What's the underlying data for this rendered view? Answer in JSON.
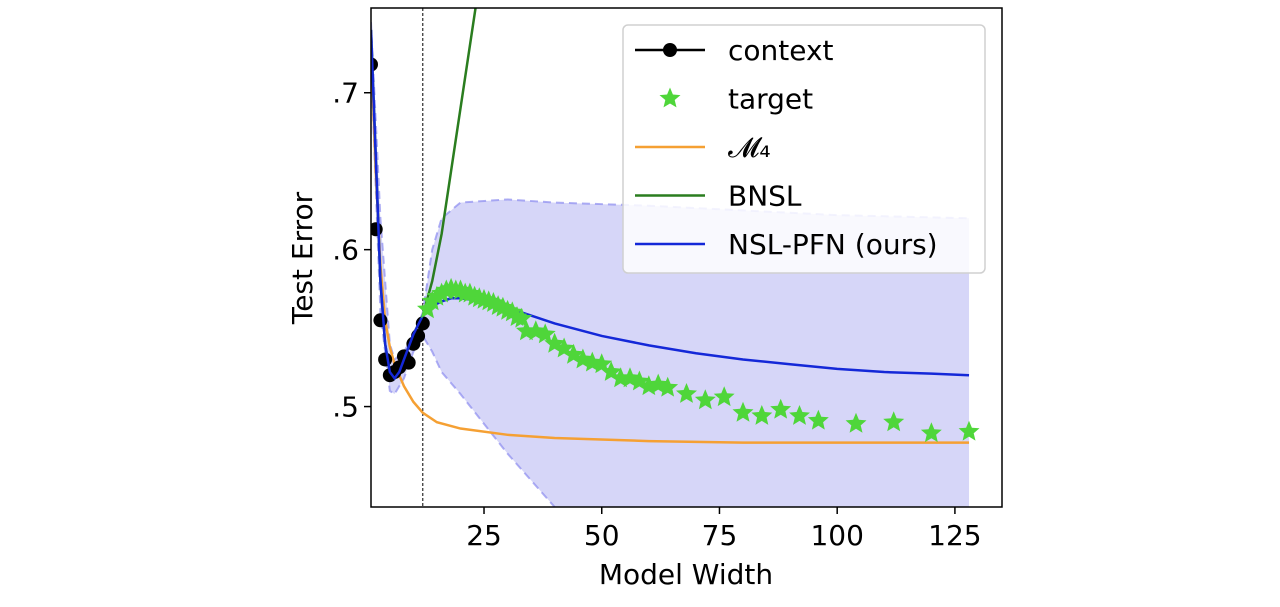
{
  "chart_data": {
    "type": "line",
    "xlabel": "Model Width",
    "ylabel": "Test Error",
    "xlim": [
      1,
      135
    ],
    "ylim": [
      0.436,
      0.754
    ],
    "xticks": [
      25,
      50,
      75,
      100,
      125
    ],
    "yticks": [
      {
        "value": 0.5,
        "label": ".5"
      },
      {
        "value": 0.6,
        "label": ".6"
      },
      {
        "value": 0.7,
        "label": ".7"
      }
    ],
    "vline": 12,
    "legend": "upper right",
    "series": [
      {
        "name": "context",
        "color": "#000000",
        "marker": "circle",
        "line": true,
        "x": [
          1,
          2,
          3,
          4,
          5,
          6,
          7,
          8,
          9,
          10,
          11,
          12
        ],
        "values": [
          0.718,
          0.613,
          0.555,
          0.53,
          0.52,
          0.522,
          0.525,
          0.532,
          0.528,
          0.54,
          0.545,
          0.553
        ]
      },
      {
        "name": "target",
        "color": "#4fd63a",
        "marker": "star",
        "line": false,
        "x": [
          13,
          14,
          15,
          16,
          17,
          18,
          19,
          20,
          21,
          22,
          23,
          24,
          25,
          26,
          27,
          28,
          29,
          30,
          31,
          32,
          33,
          34,
          36,
          38,
          40,
          42,
          44,
          46,
          48,
          50,
          52,
          54,
          56,
          58,
          60,
          62,
          64,
          68,
          72,
          76,
          80,
          84,
          88,
          92,
          96,
          104,
          112,
          120,
          128
        ],
        "values": [
          0.562,
          0.567,
          0.57,
          0.572,
          0.574,
          0.575,
          0.574,
          0.574,
          0.572,
          0.572,
          0.57,
          0.569,
          0.568,
          0.567,
          0.566,
          0.564,
          0.563,
          0.561,
          0.56,
          0.557,
          0.556,
          0.548,
          0.548,
          0.546,
          0.54,
          0.537,
          0.533,
          0.53,
          0.528,
          0.527,
          0.522,
          0.518,
          0.518,
          0.516,
          0.513,
          0.514,
          0.512,
          0.508,
          0.504,
          0.506,
          0.496,
          0.494,
          0.498,
          0.494,
          0.491,
          0.489,
          0.49,
          0.483,
          0.484
        ]
      },
      {
        "name": "𝓜₄",
        "color": "#f5a033",
        "marker": "none",
        "line": true,
        "x": [
          1,
          2,
          3,
          4,
          5,
          6,
          8,
          10,
          12,
          15,
          20,
          30,
          40,
          60,
          80,
          100,
          128
        ],
        "values": [
          0.73,
          0.65,
          0.59,
          0.555,
          0.538,
          0.527,
          0.513,
          0.503,
          0.496,
          0.49,
          0.486,
          0.482,
          0.48,
          0.478,
          0.477,
          0.477,
          0.477
        ]
      },
      {
        "name": "BNSL",
        "color": "#2a7d1f",
        "marker": "none",
        "line": true,
        "x": [
          1,
          2,
          3,
          4,
          5,
          6,
          7,
          8,
          9,
          10,
          11,
          12,
          14,
          16,
          18,
          20,
          22,
          24
        ],
        "values": [
          0.74,
          0.66,
          0.58,
          0.54,
          0.522,
          0.518,
          0.522,
          0.53,
          0.538,
          0.546,
          0.552,
          0.558,
          0.58,
          0.61,
          0.65,
          0.69,
          0.73,
          0.77
        ]
      },
      {
        "name": "NSL-PFN (ours)",
        "color": "#1428d8",
        "marker": "none",
        "line": true,
        "x": [
          1,
          2,
          3,
          4,
          5,
          6,
          7,
          8,
          9,
          10,
          11,
          12,
          14,
          16,
          18,
          20,
          25,
          30,
          35,
          40,
          50,
          60,
          70,
          80,
          90,
          100,
          110,
          120,
          128
        ],
        "values": [
          0.74,
          0.66,
          0.58,
          0.54,
          0.522,
          0.518,
          0.522,
          0.53,
          0.538,
          0.546,
          0.552,
          0.558,
          0.564,
          0.567,
          0.569,
          0.569,
          0.567,
          0.563,
          0.558,
          0.553,
          0.545,
          0.539,
          0.534,
          0.53,
          0.527,
          0.524,
          0.522,
          0.521,
          0.52
        ],
        "band": {
          "color": "#c8c8f5",
          "x": [
            1,
            3,
            5,
            6,
            8,
            10,
            12,
            14,
            16,
            20,
            30,
            40,
            60,
            80,
            100,
            128
          ],
          "upper": [
            0.745,
            0.62,
            0.54,
            0.53,
            0.535,
            0.545,
            0.56,
            0.6,
            0.62,
            0.63,
            0.632,
            0.63,
            0.628,
            0.625,
            0.622,
            0.62
          ],
          "lower": [
            0.72,
            0.56,
            0.51,
            0.508,
            0.518,
            0.535,
            0.545,
            0.535,
            0.522,
            0.508,
            0.47,
            0.436,
            null,
            null,
            null,
            null
          ]
        }
      }
    ]
  }
}
